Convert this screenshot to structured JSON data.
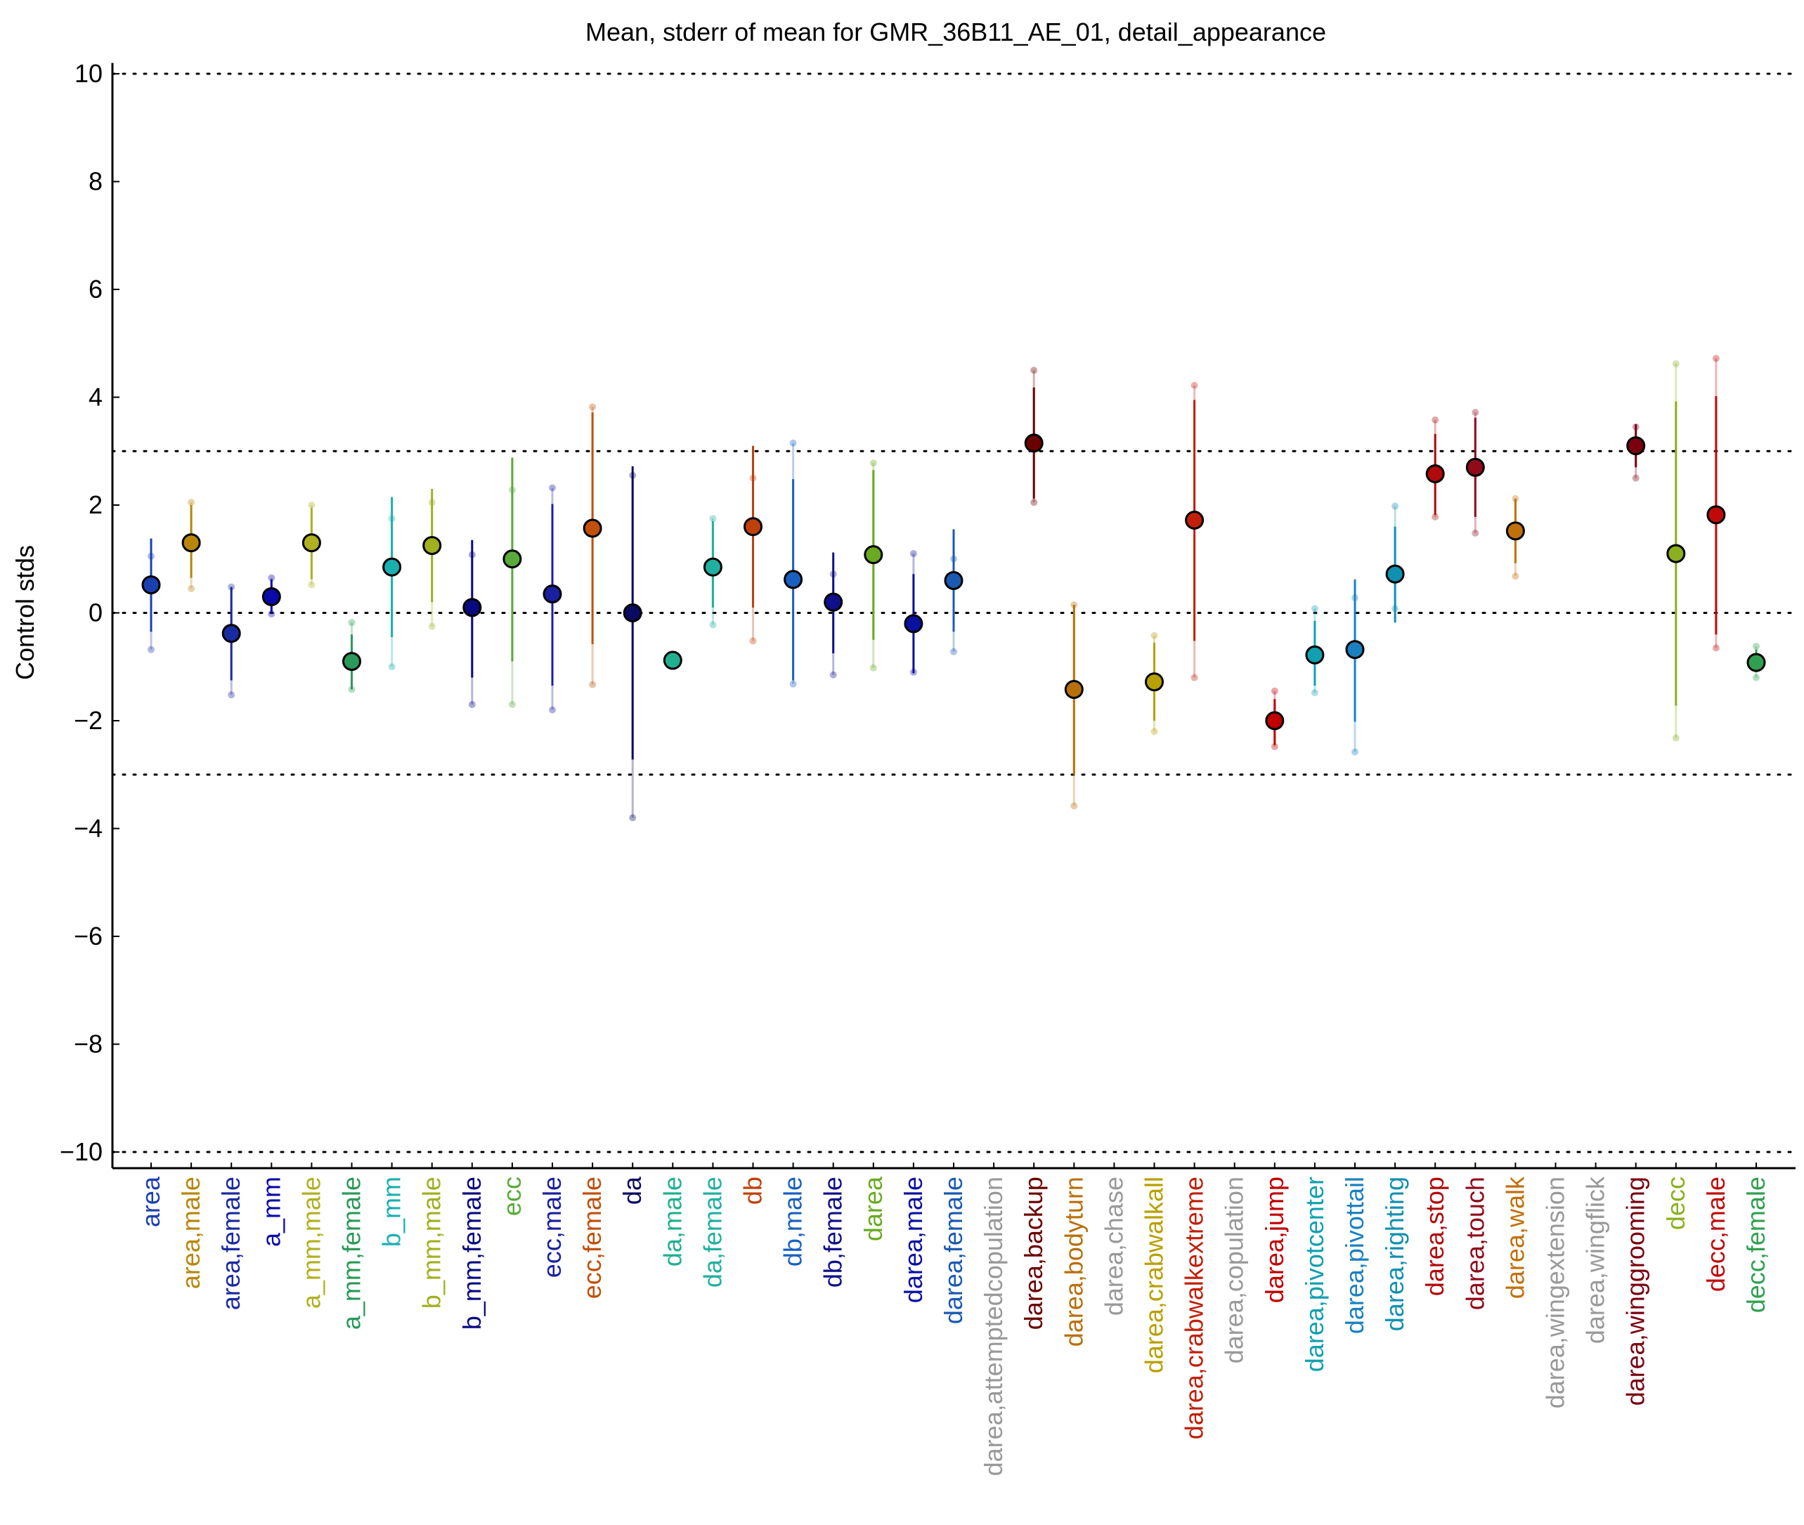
{
  "chart_data": {
    "type": "scatter",
    "title": "Mean, stderr of mean for GMR_36B11_AE_01, detail_appearance",
    "xlabel": "",
    "ylabel": "Control stds",
    "ylim": [
      -10.3,
      10.2
    ],
    "yticks": [
      10,
      8,
      6,
      4,
      2,
      0,
      -2,
      -4,
      -6,
      -8,
      -10
    ],
    "ytick_labels": [
      "10",
      "8",
      "6",
      "4",
      "2",
      "0",
      "−2",
      "−4",
      "−6",
      "−8",
      "−10"
    ],
    "reference_lines": [
      10,
      3,
      0,
      -3,
      -10
    ],
    "grid": false,
    "categories": [
      {
        "label": "area",
        "color": "#1a3fb0",
        "mean": 0.52,
        "err_lo": -0.35,
        "err_hi": 1.38,
        "ext_lo": -0.68,
        "ext_hi": 1.05
      },
      {
        "label": "area,male",
        "color": "#b8860b",
        "mean": 1.3,
        "err_lo": 0.65,
        "err_hi": 2.0,
        "ext_lo": 0.45,
        "ext_hi": 2.05
      },
      {
        "label": "area,female",
        "color": "#1a2aa0",
        "mean": -0.38,
        "err_lo": -1.25,
        "err_hi": 0.48,
        "ext_lo": -1.52,
        "ext_hi": 0.48
      },
      {
        "label": "a_mm",
        "color": "#0a0aaa",
        "mean": 0.3,
        "err_lo": 0.0,
        "err_hi": 0.62,
        "ext_lo": -0.02,
        "ext_hi": 0.65
      },
      {
        "label": "a_mm,male",
        "color": "#b0b020",
        "mean": 1.3,
        "err_lo": 0.62,
        "err_hi": 1.95,
        "ext_lo": 0.52,
        "ext_hi": 2.0
      },
      {
        "label": "a_mm,female",
        "color": "#2a9a5a",
        "mean": -0.9,
        "err_lo": -1.42,
        "err_hi": -0.4,
        "ext_lo": -1.42,
        "ext_hi": -0.18
      },
      {
        "label": "b_mm",
        "color": "#1ab0b0",
        "mean": 0.85,
        "err_lo": -0.45,
        "err_hi": 2.15,
        "ext_lo": -1.0,
        "ext_hi": 1.75
      },
      {
        "label": "b_mm,male",
        "color": "#a0b020",
        "mean": 1.25,
        "err_lo": 0.2,
        "err_hi": 2.3,
        "ext_lo": -0.25,
        "ext_hi": 2.05
      },
      {
        "label": "b_mm,female",
        "color": "#0a0a80",
        "mean": 0.1,
        "err_lo": -1.2,
        "err_hi": 1.35,
        "ext_lo": -1.7,
        "ext_hi": 1.08
      },
      {
        "label": "ecc",
        "color": "#5aaa3a",
        "mean": 1.0,
        "err_lo": -0.9,
        "err_hi": 2.88,
        "ext_lo": -1.7,
        "ext_hi": 2.28
      },
      {
        "label": "ecc,male",
        "color": "#1a20a0",
        "mean": 0.35,
        "err_lo": -1.35,
        "err_hi": 2.02,
        "ext_lo": -1.8,
        "ext_hi": 2.32
      },
      {
        "label": "ecc,female",
        "color": "#c0500a",
        "mean": 1.57,
        "err_lo": -0.58,
        "err_hi": 3.72,
        "ext_lo": -1.33,
        "ext_hi": 3.82
      },
      {
        "label": "da",
        "color": "#0a0a60",
        "mean": 0.0,
        "err_lo": -2.72,
        "err_hi": 2.72,
        "ext_lo": -3.8,
        "ext_hi": 2.55
      },
      {
        "label": "da,male",
        "color": "#20b090",
        "mean": -0.88,
        "err_lo": -0.88,
        "err_hi": -0.88,
        "ext_lo": -0.88,
        "ext_hi": -0.88
      },
      {
        "label": "da,female",
        "color": "#20b0a0",
        "mean": 0.85,
        "err_lo": 0.1,
        "err_hi": 1.7,
        "ext_lo": -0.22,
        "ext_hi": 1.75
      },
      {
        "label": "db",
        "color": "#c0400a",
        "mean": 1.6,
        "err_lo": 0.1,
        "err_hi": 3.1,
        "ext_lo": -0.52,
        "ext_hi": 2.5
      },
      {
        "label": "db,male",
        "color": "#1a60c0",
        "mean": 0.62,
        "err_lo": -1.25,
        "err_hi": 2.48,
        "ext_lo": -1.32,
        "ext_hi": 3.15
      },
      {
        "label": "db,female",
        "color": "#10108a",
        "mean": 0.2,
        "err_lo": -0.75,
        "err_hi": 1.12,
        "ext_lo": -1.15,
        "ext_hi": 0.72
      },
      {
        "label": "darea",
        "color": "#6aaa20",
        "mean": 1.08,
        "err_lo": -0.5,
        "err_hi": 2.65,
        "ext_lo": -1.02,
        "ext_hi": 2.78
      },
      {
        "label": "darea,male",
        "color": "#0a10a0",
        "mean": -0.2,
        "err_lo": -1.12,
        "err_hi": 0.72,
        "ext_lo": -1.1,
        "ext_hi": 1.1
      },
      {
        "label": "darea,female",
        "color": "#1a5ab0",
        "mean": 0.6,
        "err_lo": -0.35,
        "err_hi": 1.55,
        "ext_lo": -0.72,
        "ext_hi": 1.0
      },
      {
        "label": "darea,attemptedcopulation",
        "color": "#999999",
        "mean": null
      },
      {
        "label": "darea,backup",
        "color": "#6a0000",
        "mean": 3.15,
        "err_lo": 2.12,
        "err_hi": 4.18,
        "ext_lo": 2.05,
        "ext_hi": 4.5
      },
      {
        "label": "darea,bodyturn",
        "color": "#b8700a",
        "mean": -1.42,
        "err_lo": -3.0,
        "err_hi": 0.15,
        "ext_lo": -3.58,
        "ext_hi": 0.15
      },
      {
        "label": "darea,chase",
        "color": "#999999",
        "mean": null
      },
      {
        "label": "darea,crabwalkall",
        "color": "#b8a000",
        "mean": -1.28,
        "err_lo": -2.0,
        "err_hi": -0.55,
        "ext_lo": -2.2,
        "ext_hi": -0.42
      },
      {
        "label": "darea,crabwalkextreme",
        "color": "#c0200a",
        "mean": 1.72,
        "err_lo": -0.52,
        "err_hi": 3.95,
        "ext_lo": -1.2,
        "ext_hi": 4.22
      },
      {
        "label": "darea,copulation",
        "color": "#999999",
        "mean": null
      },
      {
        "label": "darea,jump",
        "color": "#c00000",
        "mean": -2.0,
        "err_lo": -2.45,
        "err_hi": -1.6,
        "ext_lo": -2.48,
        "ext_hi": -1.45
      },
      {
        "label": "darea,pivotcenter",
        "color": "#10a0b0",
        "mean": -0.78,
        "err_lo": -1.35,
        "err_hi": -0.15,
        "ext_lo": -1.48,
        "ext_hi": 0.08
      },
      {
        "label": "darea,pivottail",
        "color": "#1a80c0",
        "mean": -0.68,
        "err_lo": -2.02,
        "err_hi": 0.62,
        "ext_lo": -2.58,
        "ext_hi": 0.28
      },
      {
        "label": "darea,righting",
        "color": "#1090b0",
        "mean": 0.72,
        "err_lo": -0.18,
        "err_hi": 1.6,
        "ext_lo": 0.08,
        "ext_hi": 1.98
      },
      {
        "label": "darea,stop",
        "color": "#b00a0a",
        "mean": 2.58,
        "err_lo": 1.82,
        "err_hi": 3.32,
        "ext_lo": 1.78,
        "ext_hi": 3.58
      },
      {
        "label": "darea,touch",
        "color": "#900a1a",
        "mean": 2.7,
        "err_lo": 1.78,
        "err_hi": 3.62,
        "ext_lo": 1.48,
        "ext_hi": 3.72
      },
      {
        "label": "darea,walk",
        "color": "#c0700a",
        "mean": 1.52,
        "err_lo": 0.92,
        "err_hi": 2.12,
        "ext_lo": 0.68,
        "ext_hi": 2.12
      },
      {
        "label": "darea,wingextension",
        "color": "#999999",
        "mean": null
      },
      {
        "label": "darea,wingflick",
        "color": "#999999",
        "mean": null
      },
      {
        "label": "darea,winggrooming",
        "color": "#7a0010",
        "mean": 3.1,
        "err_lo": 2.7,
        "err_hi": 3.5,
        "ext_lo": 2.5,
        "ext_hi": 3.45
      },
      {
        "label": "decc",
        "color": "#8ab020",
        "mean": 1.1,
        "err_lo": -1.72,
        "err_hi": 3.92,
        "ext_lo": -2.32,
        "ext_hi": 4.62
      },
      {
        "label": "decc,male",
        "color": "#c00a0a",
        "mean": 1.82,
        "err_lo": -0.4,
        "err_hi": 4.02,
        "ext_lo": -0.65,
        "ext_hi": 4.72
      },
      {
        "label": "decc,female",
        "color": "#30a050",
        "mean": -0.92,
        "err_lo": -1.1,
        "err_hi": -0.68,
        "ext_lo": -1.2,
        "ext_hi": -0.62
      }
    ]
  }
}
